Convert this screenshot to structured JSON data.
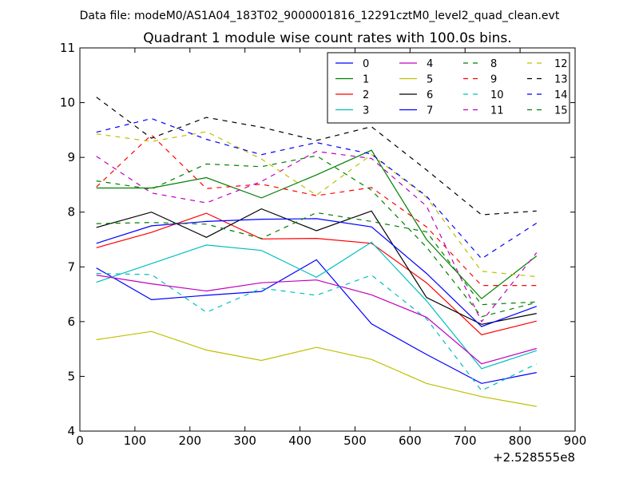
{
  "chart_data": {
    "type": "line",
    "suptitle": "Data file: modeM0/AS1A04_183T02_9000001816_12291cztM0_level2_quad_clean.evt",
    "title": "Quadrant 1 module wise count rates with 100.0s bins.",
    "xlabel": "",
    "ylabel": "",
    "x_offset_label": "+2.528555e8",
    "xlim": [
      0,
      900
    ],
    "ylim": [
      4,
      11
    ],
    "xticks": [
      0,
      100,
      200,
      300,
      400,
      500,
      600,
      700,
      800,
      900
    ],
    "yticks": [
      4,
      5,
      6,
      7,
      8,
      9,
      10,
      11
    ],
    "x": [
      30,
      130,
      230,
      330,
      430,
      530,
      630,
      730,
      830
    ],
    "legend_position": "upper right",
    "grid": false,
    "series": [
      {
        "name": "0",
        "color": "#0000ff",
        "dash": false,
        "values": [
          6.98,
          6.4,
          6.48,
          6.55,
          7.13,
          5.96,
          5.4,
          4.87,
          5.07
        ]
      },
      {
        "name": "1",
        "color": "#008000",
        "dash": false,
        "values": [
          8.44,
          8.44,
          8.63,
          8.26,
          8.68,
          9.13,
          7.5,
          6.42,
          7.2
        ]
      },
      {
        "name": "2",
        "color": "#ff0000",
        "dash": false,
        "values": [
          7.35,
          7.63,
          7.98,
          7.51,
          7.52,
          7.43,
          6.71,
          5.76,
          6.01
        ]
      },
      {
        "name": "3",
        "color": "#00bfbf",
        "dash": false,
        "values": [
          6.72,
          7.06,
          7.4,
          7.3,
          6.81,
          7.45,
          6.38,
          5.14,
          5.47
        ]
      },
      {
        "name": "4",
        "color": "#bf00bf",
        "dash": false,
        "values": [
          6.85,
          6.69,
          6.56,
          6.71,
          6.76,
          6.49,
          6.08,
          5.23,
          5.51
        ]
      },
      {
        "name": "5",
        "color": "#bfbf00",
        "dash": false,
        "values": [
          5.67,
          5.82,
          5.48,
          5.29,
          5.53,
          5.31,
          4.87,
          4.63,
          4.45
        ]
      },
      {
        "name": "6",
        "color": "#000000",
        "dash": false,
        "values": [
          7.72,
          8.0,
          7.54,
          8.06,
          7.66,
          8.02,
          6.44,
          5.95,
          6.15
        ]
      },
      {
        "name": "7",
        "color": "#0000ff",
        "dash": false,
        "values": [
          7.43,
          7.75,
          7.83,
          7.87,
          7.88,
          7.73,
          6.88,
          5.91,
          6.28
        ]
      },
      {
        "name": "8",
        "color": "#008000",
        "dash": true,
        "values": [
          7.79,
          7.81,
          7.78,
          7.52,
          7.99,
          7.83,
          7.64,
          6.31,
          6.36
        ]
      },
      {
        "name": "9",
        "color": "#ff0000",
        "dash": true,
        "values": [
          8.46,
          9.41,
          8.43,
          8.51,
          8.3,
          8.45,
          7.73,
          6.66,
          6.66
        ]
      },
      {
        "name": "10",
        "color": "#00bfbf",
        "dash": true,
        "values": [
          6.88,
          6.86,
          6.17,
          6.61,
          6.48,
          6.85,
          6.05,
          4.74,
          5.23
        ]
      },
      {
        "name": "11",
        "color": "#bf00bf",
        "dash": true,
        "values": [
          9.02,
          8.35,
          8.17,
          8.56,
          9.11,
          8.98,
          8.11,
          6.0,
          7.26
        ]
      },
      {
        "name": "12",
        "color": "#bfbf00",
        "dash": true,
        "values": [
          9.43,
          9.29,
          9.47,
          8.97,
          8.31,
          9.05,
          8.27,
          6.92,
          6.82
        ]
      },
      {
        "name": "13",
        "color": "#000000",
        "dash": true,
        "values": [
          10.1,
          9.35,
          9.73,
          9.55,
          9.31,
          9.56,
          8.77,
          7.95,
          8.02
        ]
      },
      {
        "name": "14",
        "color": "#0000ff",
        "dash": true,
        "values": [
          9.46,
          9.71,
          9.33,
          9.05,
          9.27,
          9.06,
          8.29,
          7.15,
          7.8
        ]
      },
      {
        "name": "15",
        "color": "#008000",
        "dash": true,
        "values": [
          8.57,
          8.42,
          8.88,
          8.83,
          9.03,
          8.4,
          7.36,
          6.09,
          6.35
        ]
      }
    ]
  }
}
